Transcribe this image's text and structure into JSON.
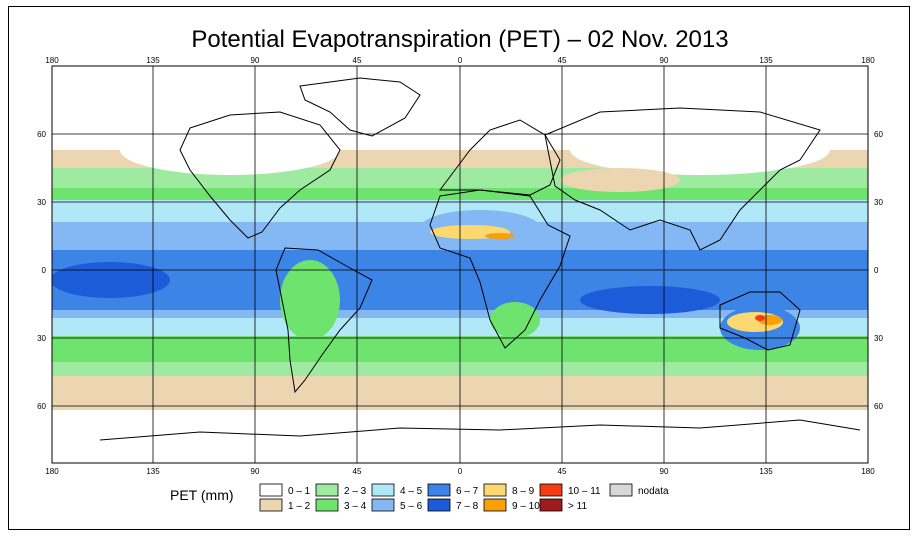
{
  "title": "Potential Evapotranspiration (PET) – 02 Nov. 2013",
  "axes": {
    "lon_ticks": [
      "180",
      "135",
      "90",
      "45",
      "0",
      "45",
      "90",
      "135",
      "180"
    ],
    "lat_ticks_left": [
      "60",
      "30",
      "0",
      "30",
      "60"
    ],
    "lat_ticks_right": [
      "60",
      "30",
      "0",
      "30",
      "60"
    ]
  },
  "legend": {
    "title": "PET (mm)",
    "items": [
      {
        "label": "0 – 1",
        "color": "#ffffff"
      },
      {
        "label": "1 – 2",
        "color": "#ecd6b2"
      },
      {
        "label": "2 – 3",
        "color": "#9eeaa0"
      },
      {
        "label": "3 – 4",
        "color": "#6ee46e"
      },
      {
        "label": "4 – 5",
        "color": "#b0e8f8"
      },
      {
        "label": "5 – 6",
        "color": "#84b8f4"
      },
      {
        "label": "6 – 7",
        "color": "#3c84e6"
      },
      {
        "label": "7 – 8",
        "color": "#1c5cd8"
      },
      {
        "label": "8 – 9",
        "color": "#fcd870"
      },
      {
        "label": "9 – 10",
        "color": "#fa9e0a"
      },
      {
        "label": "10 – 11",
        "color": "#f23c14"
      },
      {
        "label": "> 11",
        "color": "#a01c1c"
      },
      {
        "label": "nodata",
        "color": "#d8d8d8"
      }
    ]
  }
}
